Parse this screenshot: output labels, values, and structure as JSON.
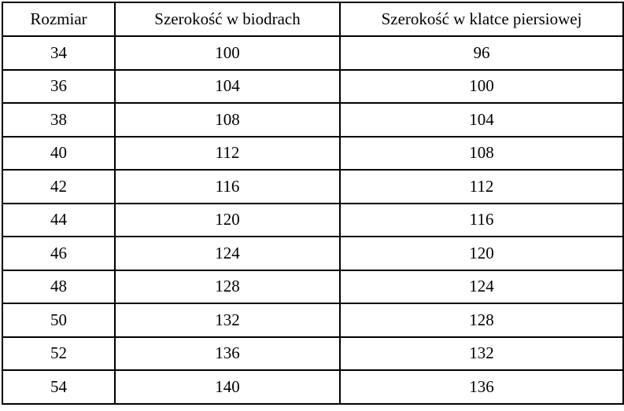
{
  "table": {
    "name": "size-chart",
    "headers": [
      {
        "key": "size",
        "label": "Rozmiar"
      },
      {
        "key": "hips",
        "label": "Szerokość w biodrach"
      },
      {
        "key": "chest",
        "label": "Szerokość w klatce piersiowej"
      }
    ],
    "rows": [
      {
        "size": "34",
        "hips": "100",
        "chest": "96"
      },
      {
        "size": "36",
        "hips": "104",
        "chest": "100"
      },
      {
        "size": "38",
        "hips": "108",
        "chest": "104"
      },
      {
        "size": "40",
        "hips": "112",
        "chest": "108"
      },
      {
        "size": "42",
        "hips": "116",
        "chest": "112"
      },
      {
        "size": "44",
        "hips": "120",
        "chest": "116"
      },
      {
        "size": "46",
        "hips": "124",
        "chest": "120"
      },
      {
        "size": "48",
        "hips": "128",
        "chest": "124"
      },
      {
        "size": "50",
        "hips": "132",
        "chest": "128"
      },
      {
        "size": "52",
        "hips": "136",
        "chest": "132"
      },
      {
        "size": "54",
        "hips": "140",
        "chest": "136"
      }
    ],
    "colors": {
      "border": "#000000",
      "background": "#ffffff",
      "text": "#000000"
    }
  }
}
